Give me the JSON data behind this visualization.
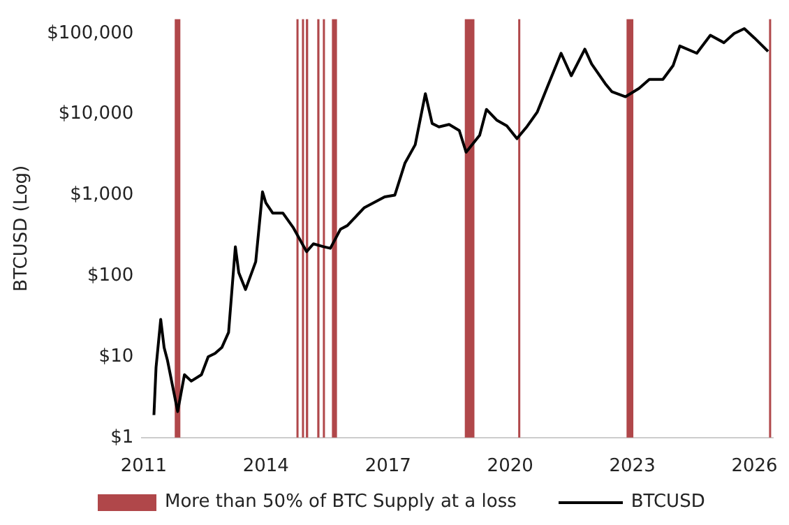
{
  "chart_data": {
    "type": "line",
    "ylabel": "BTCUSD (Log)",
    "log": true,
    "legend": "bottom",
    "grid": false,
    "xlim": [
      "2010-12-15",
      "2026-06-15"
    ],
    "xticks": [
      "2011",
      "2014",
      "2017",
      "2020",
      "2023",
      "2026"
    ],
    "ylim": [
      1,
      150000
    ],
    "yticks": [
      {
        "value": 1,
        "label": "$1"
      },
      {
        "value": 10,
        "label": "$10"
      },
      {
        "value": 100,
        "label": "$100"
      },
      {
        "value": 1000,
        "label": "$1,000"
      },
      {
        "value": 10000,
        "label": "$10,000"
      },
      {
        "value": 100000,
        "label": "$100,000"
      }
    ],
    "bands": [
      {
        "axis": "x",
        "from": "2011-10-05",
        "to": "2011-11-25",
        "label": "More than 50% of BTC Supply at a loss",
        "color": "#b0474a"
      },
      {
        "axis": "x",
        "from": "2014-10-01",
        "to": "2014-10-20",
        "color": "#b0474a"
      },
      {
        "axis": "x",
        "from": "2014-11-20",
        "to": "2014-11-28",
        "color": "#b0474a"
      },
      {
        "axis": "x",
        "from": "2014-12-25",
        "to": "2015-01-15",
        "color": "#b0474a"
      },
      {
        "axis": "x",
        "from": "2015-04-05",
        "to": "2015-04-25",
        "color": "#b0474a"
      },
      {
        "axis": "x",
        "from": "2015-05-25",
        "to": "2015-06-05",
        "color": "#b0474a"
      },
      {
        "axis": "x",
        "from": "2015-08-15",
        "to": "2015-09-30",
        "color": "#b0474a"
      },
      {
        "axis": "x",
        "from": "2018-11-20",
        "to": "2019-02-15",
        "color": "#b0474a"
      },
      {
        "axis": "x",
        "from": "2020-03-12",
        "to": "2020-03-18",
        "color": "#b0474a"
      },
      {
        "axis": "x",
        "from": "2022-11-10",
        "to": "2023-01-10",
        "color": "#b0474a"
      },
      {
        "axis": "x",
        "from": "2026-05-10",
        "to": "2026-05-18",
        "color": "#b0474a"
      }
    ],
    "series": [
      {
        "name": "BTCUSD",
        "color": "#000000",
        "x": [
          "2011-04",
          "2011-04-20",
          "2011-06",
          "2011-07",
          "2011-08",
          "2011-11",
          "2012-01",
          "2012-03",
          "2012-06",
          "2012-08",
          "2012-10",
          "2012-12",
          "2013-02",
          "2013-04",
          "2013-05",
          "2013-07",
          "2013-10",
          "2013-12",
          "2014-01",
          "2014-03",
          "2014-06",
          "2014-09",
          "2015-01",
          "2015-03",
          "2015-06",
          "2015-08",
          "2015-11",
          "2016-01",
          "2016-06",
          "2016-12",
          "2017-03",
          "2017-06",
          "2017-09",
          "2017-12",
          "2018-02",
          "2018-04",
          "2018-07",
          "2018-10",
          "2018-12",
          "2019-04",
          "2019-06",
          "2019-09",
          "2019-12",
          "2020-03",
          "2020-06",
          "2020-09",
          "2020-12",
          "2021-04",
          "2021-07",
          "2021-11",
          "2022-01",
          "2022-05",
          "2022-07",
          "2022-11",
          "2023-03",
          "2023-06",
          "2023-10",
          "2024-01",
          "2024-03",
          "2024-08",
          "2024-12",
          "2025-04",
          "2025-07",
          "2025-10",
          "2026-01",
          "2026-05"
        ],
        "values": [
          1.9,
          7.4,
          29,
          13,
          9,
          2.1,
          6,
          5,
          6,
          10,
          11,
          13,
          20,
          230,
          110,
          68,
          150,
          1100,
          800,
          600,
          600,
          400,
          200,
          250,
          230,
          220,
          380,
          420,
          700,
          950,
          1000,
          2500,
          4200,
          18000,
          7700,
          7000,
          7500,
          6300,
          3400,
          5500,
          11500,
          8500,
          7200,
          5000,
          7100,
          10700,
          22000,
          57000,
          30000,
          64000,
          42000,
          24000,
          19000,
          16500,
          21000,
          27000,
          27000,
          40000,
          70000,
          57000,
          95000,
          77000,
          100000,
          115000,
          88000,
          60000
        ]
      }
    ]
  }
}
